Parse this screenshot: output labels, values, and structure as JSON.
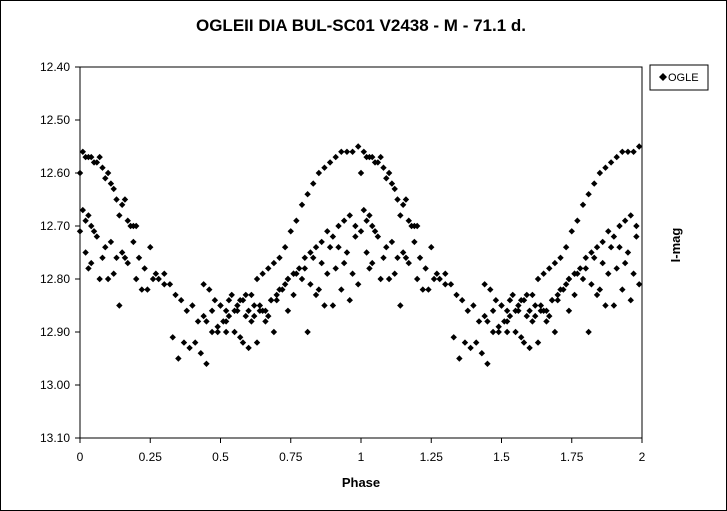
{
  "chart_data": {
    "type": "scatter",
    "title": "OGLEII DIA BUL-SC01 V2438 - M - 71.1 d.",
    "xlabel": "Phase",
    "ylabel": "I-mag",
    "xlim": [
      0,
      2
    ],
    "ylim": [
      12.4,
      13.1
    ],
    "y_inverted": true,
    "x_ticks": [
      "0",
      "0.25",
      "0.5",
      "0.75",
      "1",
      "1.25",
      "1.5",
      "1.75",
      "2"
    ],
    "y_ticks": [
      "12.40",
      "12.50",
      "12.60",
      "12.70",
      "12.80",
      "12.90",
      "13.00",
      "13.10"
    ],
    "grid": false,
    "legend": "top-right",
    "marker": "diamond",
    "color": "#000000",
    "series": [
      {
        "name": "OGLE",
        "note_points_repeat_at_phase_plus_1": true,
        "phase": [
          0.0,
          0.01,
          0.02,
          0.03,
          0.04,
          0.05,
          0.06,
          0.07,
          0.08,
          0.09,
          0.1,
          0.11,
          0.12,
          0.13,
          0.14,
          0.15,
          0.16,
          0.17,
          0.18,
          0.19,
          0.2,
          0.01,
          0.02,
          0.03,
          0.04,
          0.05,
          0.06,
          0.09,
          0.11,
          0.13,
          0.15,
          0.17,
          0.19,
          0.21,
          0.23,
          0.25,
          0.27,
          0.02,
          0.04,
          0.08,
          0.12,
          0.16,
          0.2,
          0.24,
          0.28,
          0.3,
          0.32,
          0.34,
          0.36,
          0.38,
          0.4,
          0.42,
          0.44,
          0.0,
          0.03,
          0.07,
          0.1,
          0.14,
          0.22,
          0.26,
          0.3,
          0.33,
          0.35,
          0.37,
          0.39,
          0.41,
          0.43,
          0.45,
          0.47,
          0.49,
          0.51,
          0.53,
          0.55,
          0.57,
          0.59,
          0.61,
          0.63,
          0.65,
          0.67,
          0.69,
          0.71,
          0.73,
          0.75,
          0.77,
          0.79,
          0.81,
          0.83,
          0.85,
          0.87,
          0.89,
          0.91,
          0.93,
          0.95,
          0.97,
          0.99,
          0.46,
          0.48,
          0.5,
          0.52,
          0.54,
          0.56,
          0.58,
          0.6,
          0.62,
          0.64,
          0.66,
          0.68,
          0.7,
          0.72,
          0.74,
          0.76,
          0.78,
          0.8,
          0.82,
          0.84,
          0.86,
          0.88,
          0.9,
          0.92,
          0.94,
          0.96,
          0.98,
          0.44,
          0.47,
          0.5,
          0.53,
          0.56,
          0.59,
          0.62,
          0.65,
          0.68,
          0.71,
          0.74,
          0.77,
          0.8,
          0.83,
          0.86,
          0.89,
          0.92,
          0.95,
          0.98,
          0.45,
          0.49,
          0.52,
          0.55,
          0.58,
          0.61,
          0.64,
          0.67,
          0.7,
          0.73,
          0.76,
          0.79,
          0.82,
          0.85,
          0.88,
          0.91,
          0.94,
          0.97,
          0.52,
          0.57,
          0.63,
          0.69,
          0.76,
          0.81,
          0.87,
          0.93,
          0.99,
          0.6,
          0.66,
          0.74,
          0.84,
          0.9,
          0.96
        ],
        "mag": [
          12.6,
          12.56,
          12.57,
          12.57,
          12.57,
          12.58,
          12.58,
          12.57,
          12.59,
          12.61,
          12.6,
          12.62,
          12.63,
          12.65,
          12.68,
          12.66,
          12.65,
          12.69,
          12.7,
          12.7,
          12.7,
          12.67,
          12.69,
          12.68,
          12.7,
          12.71,
          12.72,
          12.74,
          12.73,
          12.76,
          12.75,
          12.77,
          12.73,
          12.76,
          12.78,
          12.74,
          12.79,
          12.75,
          12.77,
          12.76,
          12.79,
          12.76,
          12.8,
          12.82,
          12.8,
          12.79,
          12.81,
          12.83,
          12.84,
          12.86,
          12.85,
          12.88,
          12.87,
          12.71,
          12.78,
          12.8,
          12.8,
          12.85,
          12.82,
          12.8,
          12.81,
          12.91,
          12.95,
          12.92,
          12.93,
          12.92,
          12.94,
          12.96,
          12.9,
          12.9,
          12.88,
          12.87,
          12.86,
          12.84,
          12.83,
          12.83,
          12.8,
          12.79,
          12.78,
          12.77,
          12.76,
          12.74,
          12.71,
          12.69,
          12.66,
          12.64,
          12.62,
          12.6,
          12.59,
          12.58,
          12.57,
          12.56,
          12.56,
          12.56,
          12.55,
          12.82,
          12.84,
          12.85,
          12.86,
          12.83,
          12.85,
          12.84,
          12.86,
          12.87,
          12.85,
          12.86,
          12.84,
          12.83,
          12.82,
          12.8,
          12.79,
          12.78,
          12.76,
          12.75,
          12.74,
          12.73,
          12.71,
          12.72,
          12.7,
          12.69,
          12.68,
          12.7,
          12.81,
          12.86,
          12.85,
          12.84,
          12.86,
          12.87,
          12.85,
          12.86,
          12.84,
          12.82,
          12.8,
          12.79,
          12.78,
          12.76,
          12.77,
          12.74,
          12.74,
          12.75,
          12.72,
          12.88,
          12.89,
          12.9,
          12.9,
          12.92,
          12.88,
          12.86,
          12.87,
          12.84,
          12.81,
          12.79,
          12.8,
          12.81,
          12.82,
          12.79,
          12.78,
          12.77,
          12.79,
          12.88,
          12.91,
          12.92,
          12.9,
          12.83,
          12.9,
          12.85,
          12.82,
          12.81,
          12.93,
          12.88,
          12.86,
          12.83,
          12.85,
          12.84
        ]
      }
    ]
  }
}
